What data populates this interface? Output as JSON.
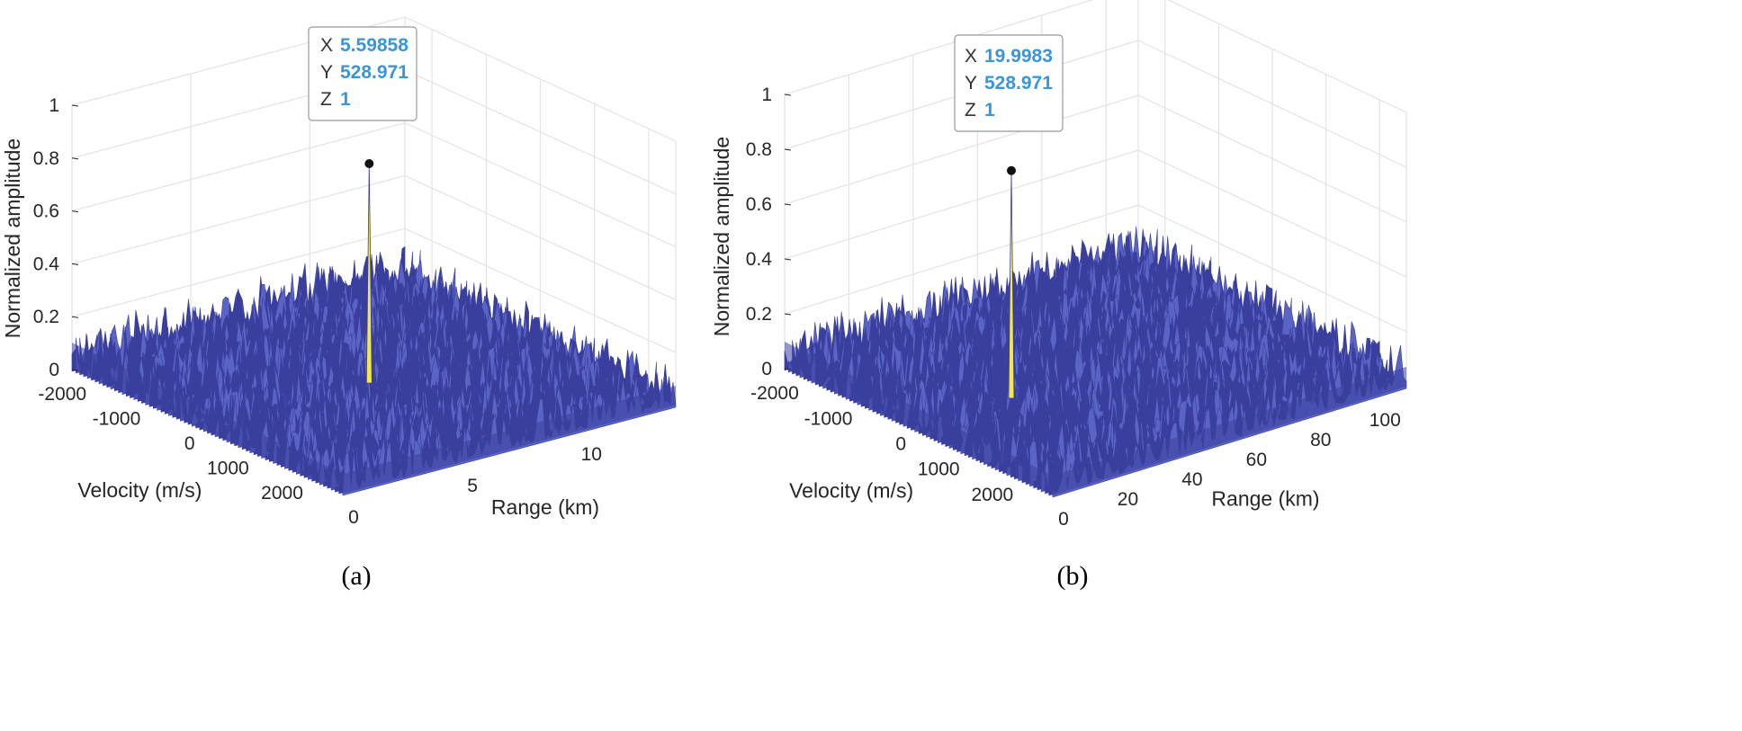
{
  "colors": {
    "surface": "#3a3f9e",
    "surface_light": "#5a64c4",
    "peak": "#f2e84a",
    "datatip_value": "#3b95d9",
    "grid": "#e3e3e3",
    "axis": "#262626"
  },
  "chart_data": [
    {
      "type": "surface3d",
      "caption": "(a)",
      "xlabel": "Range (km)",
      "ylabel": "Velocity (m/s)",
      "zlabel": "Normalized amplitude",
      "xlim": [
        0,
        14
      ],
      "ylim": [
        -2500,
        2500
      ],
      "zlim": [
        0,
        1
      ],
      "xticks": [
        0,
        5,
        10
      ],
      "yticks": [
        -2000,
        -1000,
        0,
        1000,
        2000
      ],
      "zticks": [
        0,
        0.2,
        0.4,
        0.6,
        0.8,
        1
      ],
      "xtick_labels": [
        "0",
        "5",
        "10"
      ],
      "ytick_labels": [
        "-2000",
        "-1000",
        "0",
        "1000",
        "2000"
      ],
      "ztick_labels": [
        "0",
        "0.2",
        "0.4",
        "0.6",
        "0.8",
        "1"
      ],
      "noise_floor_max": 0.15,
      "peak": {
        "x": 5.59858,
        "y": 528.971,
        "z": 1
      },
      "datatip": [
        {
          "key": "X",
          "value": "5.59858"
        },
        {
          "key": "Y",
          "value": "528.971"
        },
        {
          "key": "Z",
          "value": "1"
        }
      ]
    },
    {
      "type": "surface3d",
      "caption": "(b)",
      "xlabel": "Range (km)",
      "ylabel": "Velocity (m/s)",
      "zlabel": "Normalized amplitude",
      "xlim": [
        0,
        110
      ],
      "ylim": [
        -2500,
        2500
      ],
      "zlim": [
        0,
        1
      ],
      "xticks": [
        0,
        20,
        40,
        60,
        80,
        100
      ],
      "yticks": [
        -2000,
        -1000,
        0,
        1000,
        2000
      ],
      "zticks": [
        0,
        0.2,
        0.4,
        0.6,
        0.8,
        1
      ],
      "xtick_labels": [
        "0",
        "20",
        "40",
        "60",
        "80",
        "100"
      ],
      "ytick_labels": [
        "-2000",
        "-1000",
        "0",
        "1000",
        "2000"
      ],
      "ztick_labels": [
        "0",
        "0.2",
        "0.4",
        "0.6",
        "0.8",
        "1"
      ],
      "noise_floor_max": 0.15,
      "peak": {
        "x": 19.9983,
        "y": 528.971,
        "z": 1
      },
      "datatip": [
        {
          "key": "X",
          "value": "19.9983"
        },
        {
          "key": "Y",
          "value": "528.971"
        },
        {
          "key": "Z",
          "value": "1"
        }
      ]
    }
  ]
}
